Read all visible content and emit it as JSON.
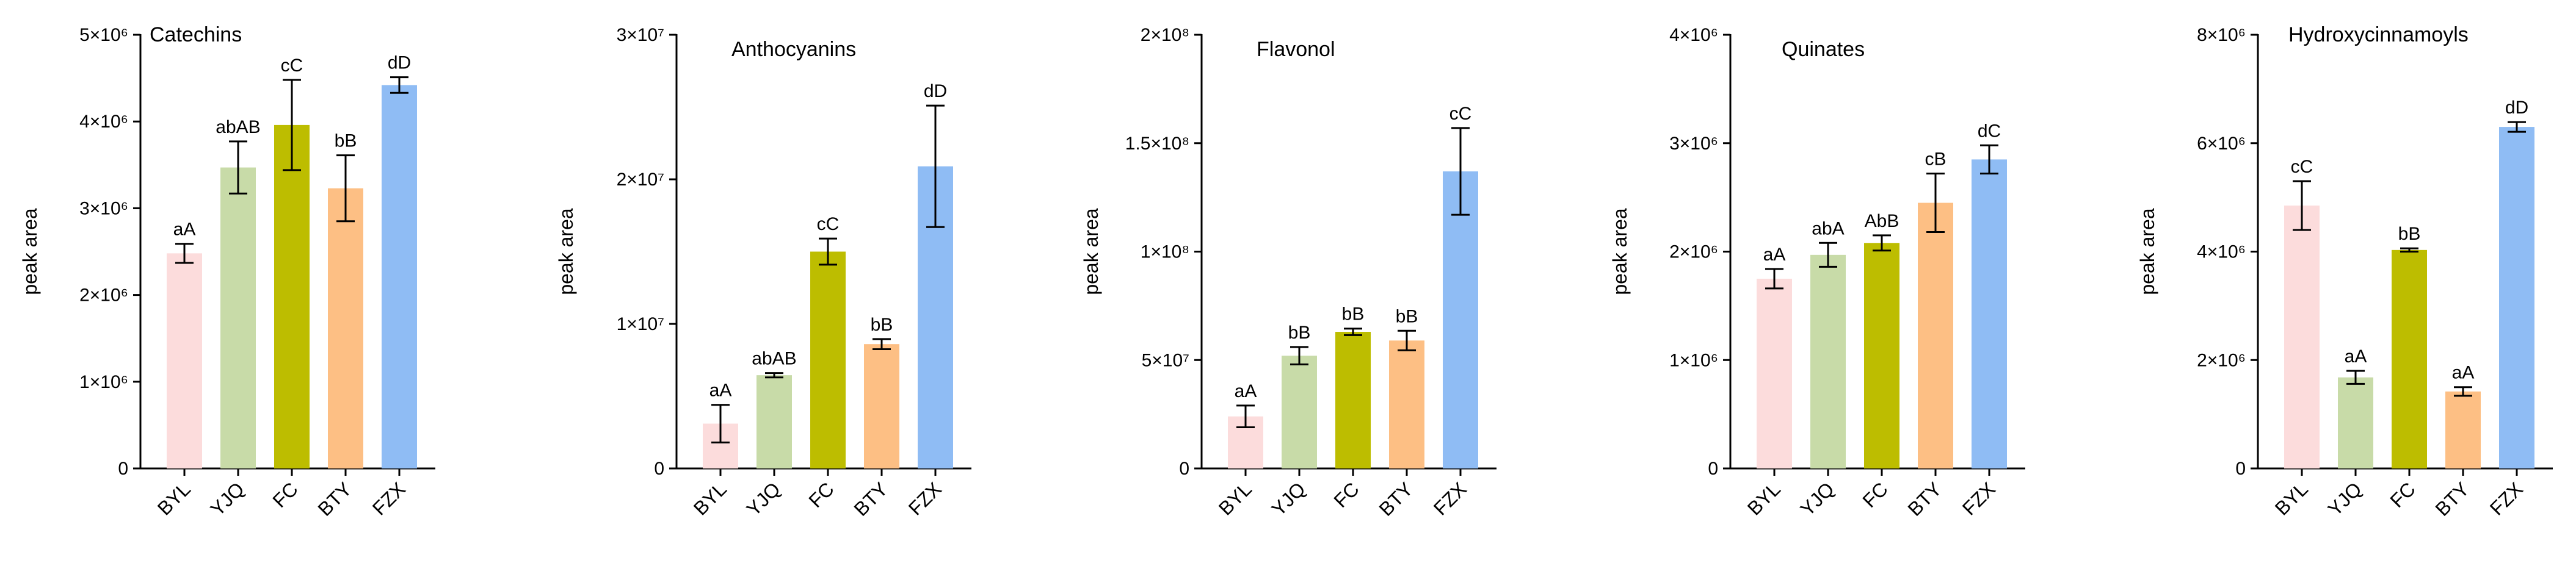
{
  "chart_data": [
    {
      "type": "bar",
      "title": "Catechins",
      "ylabel": "peak area",
      "categories": [
        "BYL",
        "YJQ",
        "FC",
        "BTY",
        "FZX"
      ],
      "values": [
        2480000,
        3470000,
        3960000,
        3230000,
        4420000
      ],
      "errors": [
        110000,
        300000,
        520000,
        380000,
        90000
      ],
      "labels": [
        "aA",
        "abAB",
        "cC",
        "bB",
        "dD"
      ],
      "colors": [
        "#fcdcdc",
        "#c8dba8",
        "#bdbd00",
        "#fdbf84",
        "#8fbcf4"
      ],
      "ylim": [
        0,
        5000000
      ],
      "yticks": [
        0,
        1000000,
        2000000,
        3000000,
        4000000,
        5000000
      ],
      "ytick_labels": [
        "0",
        "1×10⁶",
        "2×10⁶",
        "3×10⁶",
        "4×10⁶",
        "5×10⁶"
      ]
    },
    {
      "type": "bar",
      "title": "Anthocyanins",
      "ylabel": "peak area",
      "categories": [
        "BYL",
        "YJQ",
        "FC",
        "BTY",
        "FZX"
      ],
      "values": [
        3100000,
        6450000,
        15000000,
        8600000,
        20900000
      ],
      "errors": [
        1300000,
        150000,
        900000,
        350000,
        4200000
      ],
      "labels": [
        "aA",
        "abAB",
        "cC",
        "bB",
        "dD"
      ],
      "colors": [
        "#fcdcdc",
        "#c8dba8",
        "#bdbd00",
        "#fdbf84",
        "#8fbcf4"
      ],
      "ylim": [
        0,
        30000000
      ],
      "yticks": [
        0,
        10000000,
        20000000,
        30000000
      ],
      "ytick_labels": [
        "0",
        "1×10⁷",
        "2×10⁷",
        "3×10⁷"
      ]
    },
    {
      "type": "bar",
      "title": "Flavonol",
      "ylabel": "peak area",
      "categories": [
        "BYL",
        "YJQ",
        "FC",
        "BTY",
        "FZX"
      ],
      "values": [
        24000000,
        52000000,
        63000000,
        59000000,
        137000000
      ],
      "errors": [
        5000000,
        4000000,
        1500000,
        4500000,
        20000000
      ],
      "labels": [
        "aA",
        "bB",
        "bB",
        "bB",
        "cC"
      ],
      "colors": [
        "#fcdcdc",
        "#c8dba8",
        "#bdbd00",
        "#fdbf84",
        "#8fbcf4"
      ],
      "ylim": [
        0,
        200000000
      ],
      "yticks": [
        0,
        50000000,
        100000000,
        150000000,
        200000000
      ],
      "ytick_labels": [
        "0",
        "5×10⁷",
        "1×10⁸",
        "1.5×10⁸",
        "2×10⁸"
      ]
    },
    {
      "type": "bar",
      "title": "Quinates",
      "ylabel": "peak area",
      "categories": [
        "BYL",
        "YJQ",
        "FC",
        "BTY",
        "FZX"
      ],
      "values": [
        1750000,
        1970000,
        2080000,
        2450000,
        2850000
      ],
      "errors": [
        90000,
        110000,
        70000,
        270000,
        130000
      ],
      "labels": [
        "aA",
        "abA",
        "AbB",
        "cB",
        "dC"
      ],
      "colors": [
        "#fcdcdc",
        "#c8dba8",
        "#bdbd00",
        "#fdbf84",
        "#8fbcf4"
      ],
      "ylim": [
        0,
        4000000
      ],
      "yticks": [
        0,
        1000000,
        2000000,
        3000000,
        4000000
      ],
      "ytick_labels": [
        "0",
        "1×10⁶",
        "2×10⁶",
        "3×10⁶",
        "4×10⁶"
      ]
    },
    {
      "type": "bar",
      "title": "Hydroxycinnamoyls",
      "ylabel": "peak area",
      "categories": [
        "BYL",
        "YJQ",
        "FC",
        "BTY",
        "FZX"
      ],
      "values": [
        4850000,
        1680000,
        4030000,
        1420000,
        6300000
      ],
      "errors": [
        450000,
        120000,
        30000,
        80000,
        90000
      ],
      "labels": [
        "cC",
        "aA",
        "bB",
        "aA",
        "dD"
      ],
      "colors": [
        "#fcdcdc",
        "#c8dba8",
        "#bdbd00",
        "#fdbf84",
        "#8fbcf4"
      ],
      "ylim": [
        0,
        8000000
      ],
      "yticks": [
        0,
        2000000,
        4000000,
        6000000,
        8000000
      ],
      "ytick_labels": [
        "0",
        "2×10⁶",
        "4×10⁶",
        "6×10⁶",
        "8×10⁶"
      ]
    }
  ]
}
